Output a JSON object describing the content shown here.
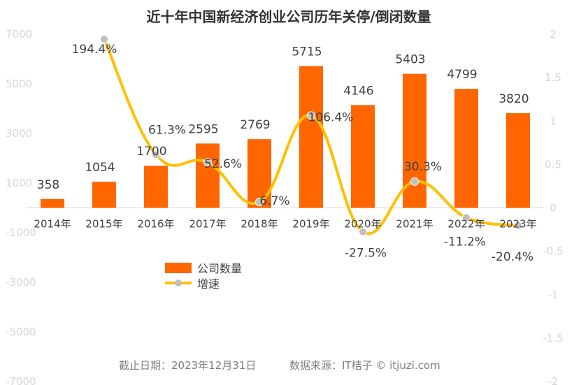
{
  "chart_data": {
    "type": "bar",
    "title": "近十年中国新经济创业公司历年关停/倒闭数量",
    "categories": [
      "2014年",
      "2015年",
      "2016年",
      "2017年",
      "2018年",
      "2019年",
      "2020年",
      "2021年",
      "2022年",
      "2023年"
    ],
    "series": [
      {
        "name": "公司数量",
        "type": "bar",
        "axis": "left",
        "color": "#ff6600",
        "values": [
          358,
          1054,
          1700,
          2595,
          2769,
          5715,
          4146,
          5403,
          4799,
          3820
        ],
        "labels": [
          "358",
          "1054",
          "1700",
          "2595",
          "2769",
          "5715",
          "4146",
          "5403",
          "4799",
          "3820"
        ]
      },
      {
        "name": "增速",
        "type": "line",
        "axis": "right",
        "color": "#ffc000",
        "marker_color": "#bfbfbf",
        "values": [
          null,
          1.944,
          0.613,
          0.526,
          0.067,
          1.064,
          -0.275,
          0.303,
          -0.112,
          -0.204
        ],
        "labels": [
          "",
          "194.4%",
          "61.3%",
          "52.6%",
          "6.7%",
          "106.4%",
          "-27.5%",
          "30.3%",
          "-11.2%",
          "-20.4%"
        ]
      }
    ],
    "y_left": {
      "ylim": [
        -7000,
        7000
      ],
      "ticks": [
        -7000,
        -5000,
        -3000,
        -1000,
        1000,
        3000,
        5000,
        7000
      ],
      "tick_labels": [
        "-7000",
        "-5000",
        "-3000",
        "-1000",
        "1000",
        "3000",
        "5000",
        "7000"
      ]
    },
    "y_right": {
      "ylim": [
        -2,
        2
      ],
      "ticks": [
        -2,
        -1.5,
        -1,
        -0.5,
        0,
        0.5,
        1,
        1.5,
        2
      ],
      "tick_labels": [
        "-2",
        "-1.5",
        "-1",
        "-0.5",
        "0",
        "0.5",
        "1",
        "1.5",
        "2"
      ]
    },
    "grid": false,
    "legend": "bottom-left"
  },
  "footer": {
    "date_text": "截止日期：2023年12月31日",
    "source_text": "数据来源：IT桔子 © itjuzi.com"
  }
}
